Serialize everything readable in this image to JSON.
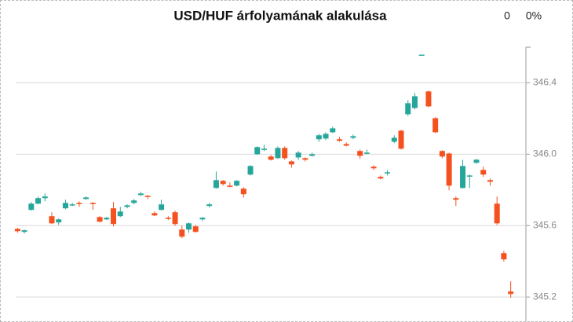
{
  "chart_data": {
    "type": "candlestick",
    "title": "USD/HUF árfolyamának alakulása",
    "annotations": [
      "0",
      "0%"
    ],
    "up_color": "#26a69a",
    "down_color": "#f4511e",
    "open": [
      345.582,
      345.565,
      345.688,
      345.723,
      345.754,
      345.653,
      345.618,
      345.697,
      345.714,
      345.727,
      345.749,
      345.727,
      345.648,
      345.635,
      345.697,
      345.653,
      345.705,
      345.727,
      345.771,
      345.767,
      345.67,
      345.688,
      345.644,
      345.675,
      345.578,
      345.578,
      345.596,
      345.635,
      345.71,
      345.811,
      345.851,
      345.824,
      345.824,
      345.807,
      345.886,
      346.0,
      346.026,
      345.987,
      345.978,
      346.035,
      345.96,
      345.982,
      345.978,
      345.991,
      346.084,
      346.088,
      346.123,
      346.084,
      346.057,
      346.092,
      346.018,
      346.004,
      345.93,
      345.873,
      345.894,
      346.07,
      346.132,
      346.224,
      346.259,
      346.554,
      346.352,
      346.202,
      346.018,
      346.004,
      345.754,
      345.811,
      345.877,
      345.952,
      345.912,
      345.855,
      345.723,
      345.446,
      345.231
    ],
    "high": [
      345.587,
      345.578,
      345.732,
      345.763,
      345.78,
      345.675,
      345.64,
      345.745,
      345.727,
      345.736,
      345.763,
      345.732,
      345.653,
      345.648,
      345.732,
      345.705,
      345.719,
      345.749,
      345.789,
      345.771,
      345.679,
      345.745,
      345.653,
      345.684,
      345.6,
      345.618,
      345.604,
      345.648,
      345.727,
      345.903,
      345.855,
      345.842,
      345.855,
      345.815,
      345.938,
      346.044,
      346.053,
      345.996,
      346.044,
      346.044,
      345.965,
      346.018,
      345.982,
      346.009,
      346.114,
      346.123,
      346.154,
      346.097,
      346.066,
      346.11,
      346.026,
      346.026,
      345.938,
      345.881,
      345.912,
      346.106,
      346.136,
      346.303,
      346.343,
      346.558,
      346.356,
      346.207,
      346.022,
      346.009,
      345.763,
      345.969,
      345.886,
      345.974,
      345.93,
      345.864,
      345.763,
      345.459,
      345.288
    ],
    "low": [
      345.56,
      345.556,
      345.684,
      345.719,
      345.736,
      345.609,
      345.604,
      345.692,
      345.71,
      345.705,
      345.745,
      345.688,
      345.618,
      345.631,
      345.596,
      345.648,
      345.697,
      345.719,
      345.767,
      345.749,
      345.653,
      345.684,
      345.631,
      345.6,
      345.53,
      345.56,
      345.56,
      345.626,
      345.701,
      345.807,
      345.824,
      345.815,
      345.82,
      345.758,
      345.881,
      345.996,
      346.018,
      345.965,
      345.974,
      345.969,
      345.925,
      345.969,
      345.96,
      345.987,
      346.07,
      346.079,
      346.119,
      346.07,
      346.044,
      346.084,
      345.974,
      346.0,
      345.912,
      345.859,
      345.881,
      346.062,
      346.026,
      346.215,
      346.251,
      346.554,
      346.264,
      346.119,
      345.978,
      345.798,
      345.71,
      345.807,
      345.811,
      345.947,
      345.873,
      345.824,
      345.604,
      345.398,
      345.196
    ],
    "close": [
      345.569,
      345.574,
      345.723,
      345.754,
      345.763,
      345.613,
      345.635,
      345.727,
      345.719,
      345.723,
      345.758,
      345.723,
      345.622,
      345.644,
      345.609,
      345.679,
      345.714,
      345.741,
      345.78,
      345.763,
      345.657,
      345.719,
      345.64,
      345.609,
      345.538,
      345.613,
      345.565,
      345.644,
      345.719,
      345.855,
      345.833,
      345.82,
      345.851,
      345.776,
      345.934,
      346.04,
      346.031,
      345.969,
      346.035,
      345.978,
      345.943,
      346.009,
      345.969,
      346.0,
      346.106,
      346.114,
      346.145,
      346.075,
      346.048,
      346.101,
      345.991,
      346.009,
      345.921,
      345.864,
      345.899,
      346.092,
      346.031,
      346.286,
      346.325,
      346.558,
      346.268,
      346.123,
      345.987,
      345.824,
      345.745,
      345.934,
      345.881,
      345.969,
      345.886,
      345.846,
      345.613,
      345.411,
      345.217
    ],
    "ylim": [
      345.06,
      346.6
    ],
    "yticks": [
      345.2,
      345.6,
      {
        "value": 346,
        "label": "346.0"
      },
      346.4
    ],
    "grid": true
  }
}
